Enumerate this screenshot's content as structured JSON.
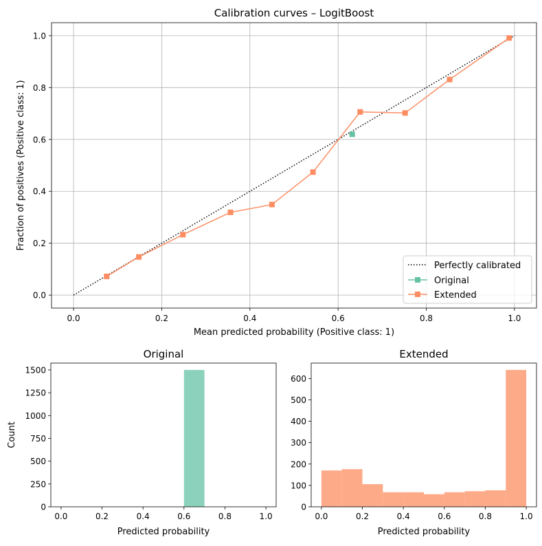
{
  "chart_data": [
    {
      "type": "line",
      "title": "Calibration curves – LogitBoost",
      "xlabel": "Mean predicted probability (Positive class: 1)",
      "ylabel": "Fraction of positives (Positive class: 1)",
      "xlim": [
        -0.05,
        1.05
      ],
      "ylim": [
        -0.05,
        1.05
      ],
      "xticks": [
        "0.0",
        "0.2",
        "0.4",
        "0.6",
        "0.8",
        "1.0"
      ],
      "yticks": [
        "0.0",
        "0.2",
        "0.4",
        "0.6",
        "0.8",
        "1.0"
      ],
      "grid": true,
      "legend_position": "lower-right",
      "series": [
        {
          "name": "Perfectly calibrated",
          "style": "dotted",
          "color": "#000000",
          "x": [
            0,
            1
          ],
          "y": [
            0,
            1
          ]
        },
        {
          "name": "Original",
          "style": "line-square",
          "color": "#66c2a5",
          "x": [
            0.632
          ],
          "y": [
            0.62
          ]
        },
        {
          "name": "Extended",
          "style": "line-square",
          "color": "#fc8d62",
          "x": [
            0.075,
            0.148,
            0.248,
            0.356,
            0.45,
            0.543,
            0.65,
            0.752,
            0.853,
            0.988
          ],
          "y": [
            0.072,
            0.147,
            0.233,
            0.319,
            0.349,
            0.474,
            0.706,
            0.702,
            0.831,
            0.991
          ]
        }
      ]
    },
    {
      "type": "bar",
      "title": "Original",
      "xlabel": "Predicted probability",
      "ylabel": "Count",
      "color": "#66c2a5",
      "xlim": [
        -0.05,
        1.05
      ],
      "ylim": [
        0,
        1575
      ],
      "xticks": [
        "0.0",
        "0.2",
        "0.4",
        "0.6",
        "0.8",
        "1.0"
      ],
      "yticks": [
        "0",
        "250",
        "500",
        "750",
        "1000",
        "1250",
        "1500"
      ],
      "bins": [
        0,
        0.1,
        0.2,
        0.3,
        0.4,
        0.5,
        0.6,
        0.7,
        0.8,
        0.9,
        1.0
      ],
      "counts": [
        0,
        0,
        0,
        0,
        0,
        0,
        1500,
        0,
        0,
        0
      ]
    },
    {
      "type": "bar",
      "title": "Extended",
      "xlabel": "Predicted probability",
      "ylabel": "",
      "color": "#fc8d62",
      "xlim": [
        -0.05,
        1.05
      ],
      "ylim": [
        0,
        672
      ],
      "xticks": [
        "0.0",
        "0.2",
        "0.4",
        "0.6",
        "0.8",
        "1.0"
      ],
      "yticks": [
        "0",
        "100",
        "200",
        "300",
        "400",
        "500",
        "600"
      ],
      "bins": [
        0,
        0.1,
        0.2,
        0.3,
        0.4,
        0.5,
        0.6,
        0.7,
        0.8,
        0.9,
        1.0
      ],
      "counts": [
        170,
        176,
        106,
        68,
        68,
        59,
        68,
        73,
        77,
        640
      ]
    }
  ]
}
